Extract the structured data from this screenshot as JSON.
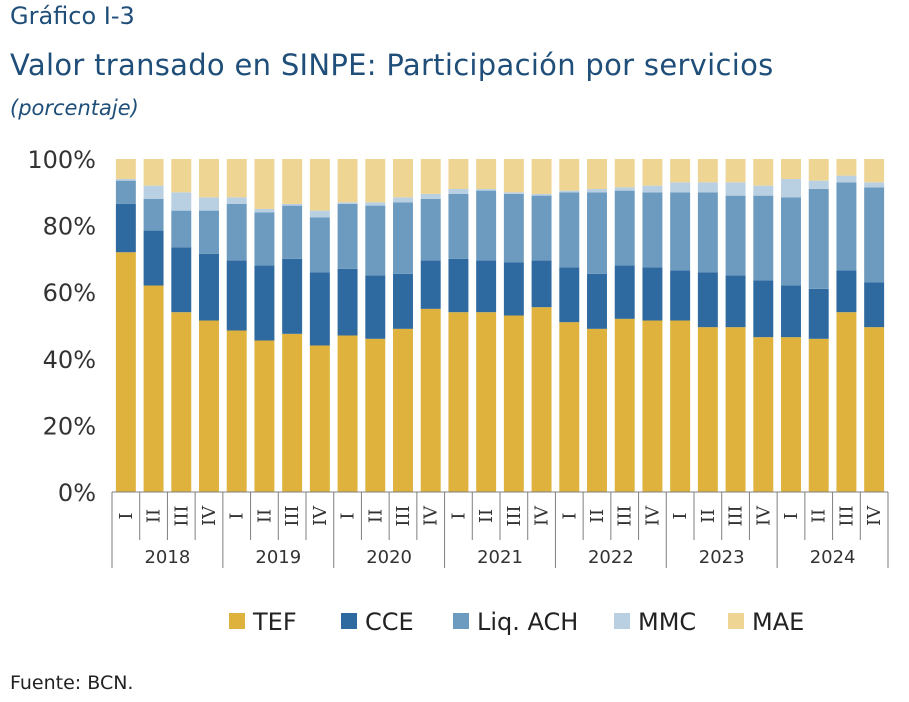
{
  "header": {
    "label": "Gráfico I-3",
    "title": "Valor transado en SINPE: Participación por servicios",
    "unit": "(porcentaje)"
  },
  "footer": {
    "source": "Fuente: BCN."
  },
  "colors": {
    "TEF": "#dfb23d",
    "CCE": "#2e6aa0",
    "Liq. ACH": "#6d9bc0",
    "MMC": "#b9cfe2",
    "MAE": "#efd593"
  },
  "chart_data": {
    "type": "bar",
    "stacked": true,
    "years": [
      "2018",
      "2019",
      "2020",
      "2021",
      "2022",
      "2023",
      "2024"
    ],
    "quarters": [
      "I",
      "II",
      "III",
      "IV"
    ],
    "categories": [
      "2018 I",
      "2018 II",
      "2018 III",
      "2018 IV",
      "2019 I",
      "2019 II",
      "2019 III",
      "2019 IV",
      "2020 I",
      "2020 II",
      "2020 III",
      "2020 IV",
      "2021 I",
      "2021 II",
      "2021 III",
      "2021 IV",
      "2022 I",
      "2022 II",
      "2022 III",
      "2022 IV",
      "2023 I",
      "2023 II",
      "2023 III",
      "2023 IV",
      "2024 I",
      "2024 II",
      "2024 III",
      "2024 IV"
    ],
    "series": [
      {
        "name": "TEF",
        "values": [
          72,
          62,
          54,
          51.5,
          48.5,
          45.5,
          47.5,
          44,
          47,
          46,
          49,
          55,
          54,
          54,
          53,
          55.5,
          51,
          49,
          52,
          51.5,
          51.5,
          49.5,
          49.5,
          46.5,
          46.5,
          46,
          54,
          49.5
        ]
      },
      {
        "name": "CCE",
        "values": [
          14.5,
          16.5,
          19.5,
          20,
          21,
          22.5,
          22.5,
          22,
          20,
          19,
          16.5,
          14.5,
          16,
          15.5,
          16,
          14,
          16.5,
          16.5,
          16,
          16,
          15,
          16.5,
          15.5,
          17,
          15.5,
          15,
          12.5,
          13.5
        ]
      },
      {
        "name": "Liq. ACH",
        "values": [
          7,
          9.5,
          11,
          13,
          17,
          16,
          16,
          16.5,
          19.5,
          21,
          21.5,
          18.5,
          19.5,
          21,
          20.5,
          19.5,
          22.5,
          24.5,
          22.5,
          22.5,
          23.5,
          24,
          24,
          25.5,
          26.5,
          30,
          26.5,
          28.5
        ]
      },
      {
        "name": "MMC",
        "values": [
          0.5,
          4,
          5.5,
          4,
          2,
          1,
          0.5,
          2,
          0.5,
          1,
          1.5,
          1.5,
          1.5,
          0.5,
          0.5,
          0.5,
          0.5,
          1,
          1,
          2,
          3,
          3,
          4,
          3,
          5.5,
          2.5,
          2,
          1.5
        ]
      },
      {
        "name": "MAE",
        "values": [
          6,
          8,
          10,
          11.5,
          11.5,
          15,
          13.5,
          15.5,
          13,
          13,
          11.5,
          10.5,
          9,
          9,
          10,
          10.5,
          9.5,
          9,
          8.5,
          8,
          7,
          7,
          7,
          8,
          6,
          6.5,
          5,
          7
        ]
      }
    ],
    "ylim": [
      0,
      100
    ],
    "yticks": [
      "0%",
      "20%",
      "40%",
      "60%",
      "80%",
      "100%"
    ],
    "legend_position": "bottom",
    "grid": false
  }
}
